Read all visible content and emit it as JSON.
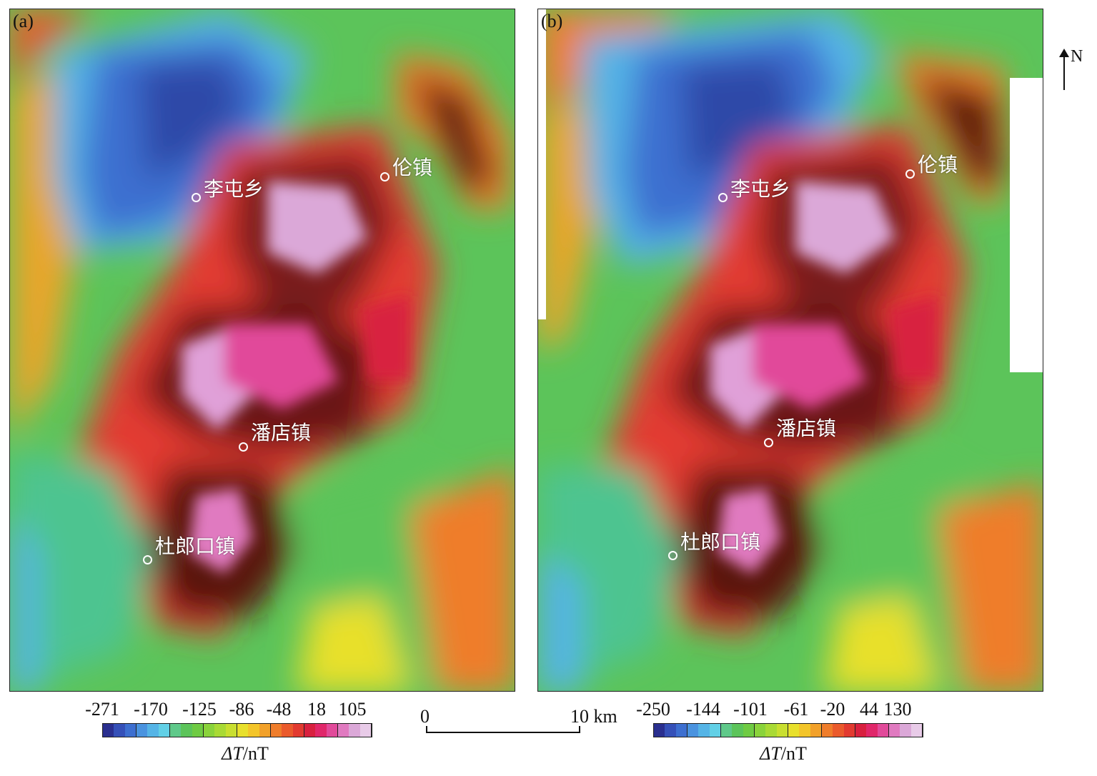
{
  "panels": {
    "a": {
      "letter": "(a)",
      "towns": [
        "李屯乡",
        "伦镇",
        "潘店镇",
        "杜郎口镇"
      ]
    },
    "b": {
      "letter": "(b)",
      "towns": [
        "李屯乡",
        "伦镇",
        "潘店镇",
        "杜郎口镇"
      ]
    }
  },
  "north": {
    "label": "N"
  },
  "legend_a": {
    "ticks": [
      "-271",
      "-170",
      "-125",
      "-86",
      "-48",
      "18",
      "105"
    ],
    "unit_italic": "Δ",
    "unit_italic2": "T",
    "unit_rest": "/nT"
  },
  "legend_b": {
    "ticks": [
      "-250",
      "-144",
      "-101",
      "-61",
      "-20",
      "44",
      "130"
    ],
    "unit_italic": "Δ",
    "unit_italic2": "T",
    "unit_rest": "/nT"
  },
  "scale": {
    "start": "0",
    "end": "10 km"
  },
  "colors": {
    "ramp": [
      "#2a2f8f",
      "#3550b8",
      "#3d6fd0",
      "#4a93df",
      "#55b4e6",
      "#62d0e6",
      "#5fc98a",
      "#5cc45a",
      "#6fcb43",
      "#8ad33b",
      "#a9da35",
      "#c9df30",
      "#e8e02c",
      "#f3c52a",
      "#f2a12a",
      "#ef7d2b",
      "#ea5a2c",
      "#e23a30",
      "#d8203f",
      "#e0276a",
      "#e14a9a",
      "#e07ac0",
      "#dba8d8",
      "#e8cbe8"
    ]
  }
}
